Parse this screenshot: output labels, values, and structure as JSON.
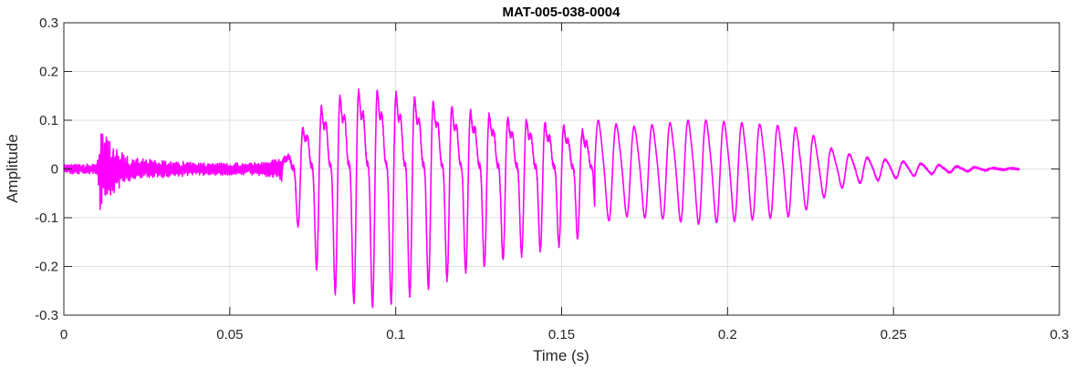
{
  "chart_data": {
    "type": "line",
    "title": "MAT-005-038-0004",
    "xlabel": "Time (s)",
    "ylabel": "Amplitude",
    "xlim": [
      0,
      0.3
    ],
    "ylim": [
      -0.3,
      0.3
    ],
    "grid": true,
    "x_ticks": [
      0,
      0.05,
      0.1,
      0.15,
      0.2,
      0.25,
      0.3
    ],
    "x_tick_labels": [
      "0",
      "0.05",
      "0.1",
      "0.15",
      "0.2",
      "0.25",
      "0.3"
    ],
    "y_ticks": [
      -0.3,
      -0.2,
      -0.1,
      0,
      0.1,
      0.2,
      0.3
    ],
    "y_tick_labels": [
      "-0.3",
      "-0.2",
      "-0.1",
      "0",
      "0.1",
      "0.2",
      "0.3"
    ],
    "line_color": "#ff00ff",
    "x_end": 0.288,
    "series": [
      {
        "envelope": [
          [
            0.0,
            0.009
          ],
          [
            0.01,
            0.01
          ],
          [
            0.011,
            0.085
          ],
          [
            0.014,
            0.05
          ],
          [
            0.02,
            0.022
          ],
          [
            0.04,
            0.012
          ],
          [
            0.06,
            0.012
          ],
          [
            0.066,
            0.025
          ],
          [
            0.07,
            0.09
          ],
          [
            0.074,
            0.15
          ],
          [
            0.078,
            0.19
          ],
          [
            0.082,
            0.215
          ],
          [
            0.09,
            0.24
          ],
          [
            0.1,
            0.23
          ],
          [
            0.11,
            0.205
          ],
          [
            0.12,
            0.18
          ],
          [
            0.13,
            0.16
          ],
          [
            0.14,
            0.145
          ],
          [
            0.15,
            0.13
          ],
          [
            0.16,
            0.105
          ],
          [
            0.17,
            0.09
          ],
          [
            0.18,
            0.095
          ],
          [
            0.19,
            0.105
          ],
          [
            0.2,
            0.1
          ],
          [
            0.21,
            0.095
          ],
          [
            0.22,
            0.09
          ],
          [
            0.226,
            0.07
          ],
          [
            0.232,
            0.04
          ],
          [
            0.24,
            0.026
          ],
          [
            0.25,
            0.018
          ],
          [
            0.26,
            0.01
          ],
          [
            0.27,
            0.005
          ],
          [
            0.28,
            0.002
          ],
          [
            0.288,
            0.001
          ]
        ]
      }
    ]
  }
}
